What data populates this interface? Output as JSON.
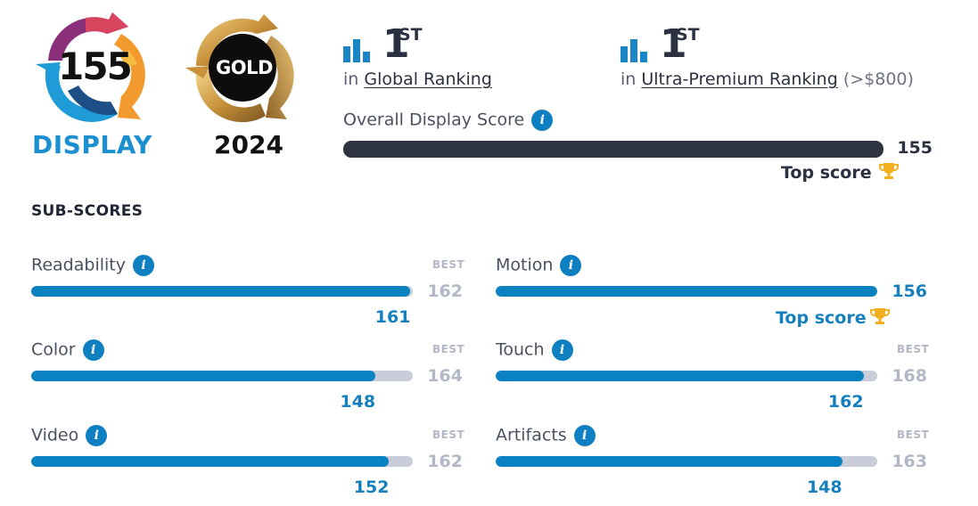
{
  "badges": {
    "display": {
      "score": "155",
      "caption": "DISPLAY"
    },
    "award": {
      "label": "GOLD",
      "year": "2024"
    }
  },
  "rankings": [
    {
      "rank": "1",
      "suffix": "ST",
      "prefix": "in",
      "link": "Global Ranking",
      "note": ""
    },
    {
      "rank": "1",
      "suffix": "ST",
      "prefix": "in",
      "link": "Ultra-Premium Ranking",
      "note": "(>$800)"
    }
  ],
  "overall": {
    "label": "Overall Display Score",
    "score": "155",
    "fill_fraction": 1.0,
    "top_score_label": "Top score"
  },
  "subscores": {
    "title": "SUB-SCORES",
    "best_label": "BEST",
    "items": [
      {
        "label": "Readability",
        "score": "161",
        "best": "162",
        "fraction": 0.994,
        "top_score": ""
      },
      {
        "label": "Motion",
        "score": "156",
        "best": "",
        "fraction": 1.0,
        "top_score": "Top score"
      },
      {
        "label": "Color",
        "score": "148",
        "best": "164",
        "fraction": 0.902,
        "top_score": ""
      },
      {
        "label": "Touch",
        "score": "162",
        "best": "168",
        "fraction": 0.964,
        "top_score": ""
      },
      {
        "label": "Video",
        "score": "152",
        "best": "162",
        "fraction": 0.938,
        "top_score": ""
      },
      {
        "label": "Artifacts",
        "score": "148",
        "best": "163",
        "fraction": 0.908,
        "top_score": ""
      }
    ]
  },
  "colors": {
    "accent_blue": "#0a82c1",
    "dark_bar": "#2f3442",
    "track_gray": "#c9cdd9",
    "trophy_gold": "#f2b01e"
  },
  "icons": [
    "bar-chart-icon",
    "info-icon",
    "trophy-icon"
  ]
}
